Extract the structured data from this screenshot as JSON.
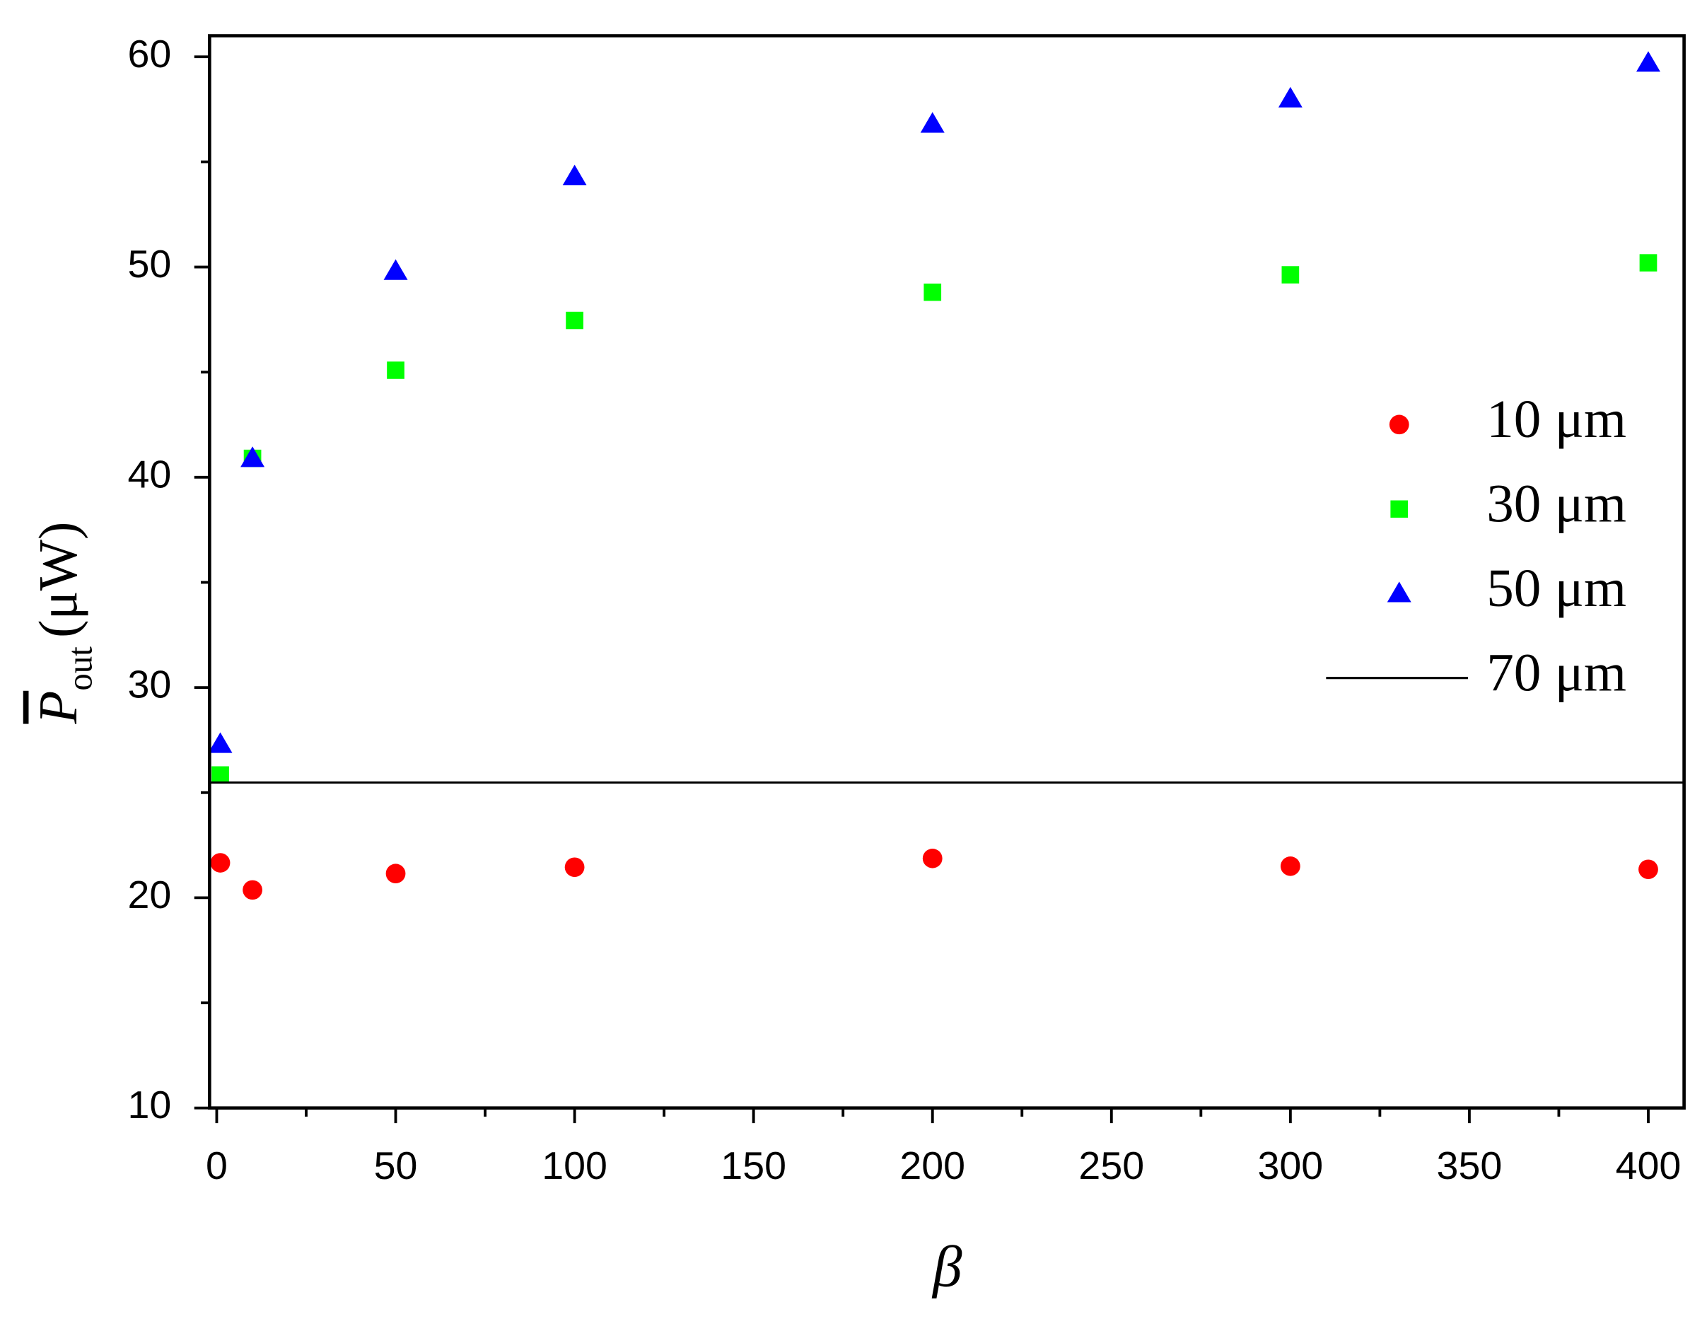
{
  "chart_data": {
    "type": "scatter",
    "x": [
      1,
      10,
      50,
      100,
      200,
      300,
      400
    ],
    "series": [
      {
        "name": "10 μm",
        "color": "#ff0000",
        "marker": "circle",
        "values": [
          21.66,
          20.37,
          21.15,
          21.45,
          21.87,
          21.5,
          21.35
        ]
      },
      {
        "name": "30 μm",
        "color": "#00ff00",
        "marker": "square",
        "values": [
          25.84,
          40.9,
          45.09,
          47.46,
          48.8,
          49.63,
          50.2
        ]
      },
      {
        "name": "50 μm",
        "color": "#0000ff",
        "marker": "triangle",
        "values": [
          27.3,
          40.9,
          49.8,
          54.3,
          56.8,
          58.0,
          59.7
        ]
      },
      {
        "name": "70 μm",
        "color": "#000000",
        "marker": "line",
        "x": [
          -2,
          410
        ],
        "values": [
          25.48,
          25.48
        ]
      }
    ],
    "xlabel": "β",
    "ylabel": {
      "symbol": "P",
      "subscript": "out",
      "unit": "(μW)"
    },
    "xlim": [
      -2,
      410
    ],
    "ylim": [
      10,
      61
    ],
    "xticks": [
      0,
      50,
      100,
      150,
      200,
      250,
      300,
      350,
      400
    ],
    "yticks": [
      10,
      20,
      30,
      40,
      50,
      60
    ],
    "xminorticks": [
      25,
      75,
      125,
      175,
      225,
      275,
      325,
      375
    ],
    "yminorticks": [
      15,
      25,
      35,
      45,
      55
    ],
    "legend": "right"
  }
}
